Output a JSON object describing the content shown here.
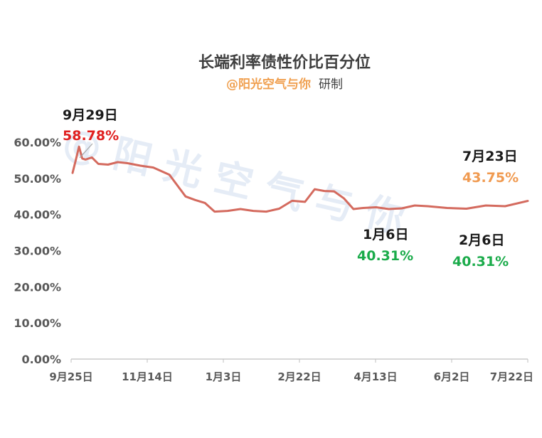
{
  "chart_data": {
    "type": "line",
    "title": "长端利率债性价比百分位",
    "subtitle_brand": "@阳光空气与你",
    "subtitle_rest": "研制",
    "watermark": "@ 阳 光 空 气 与 你",
    "xlabel": "",
    "ylabel": "",
    "ylim": [
      0,
      60
    ],
    "grid": false,
    "y_ticks": [
      "0.00%",
      "10.00%",
      "20.00%",
      "30.00%",
      "40.00%",
      "50.00%",
      "60.00%"
    ],
    "x_ticks": [
      "9月25日",
      "11月14日",
      "1月3日",
      "2月22日",
      "4月13日",
      "6月2日",
      "7月22日"
    ],
    "line_color": "#d46a5e",
    "series": [
      {
        "x": [
          0,
          2,
          4,
          6,
          8,
          12,
          16,
          22,
          28,
          34,
          42,
          50,
          60,
          70,
          76,
          82,
          88,
          96,
          104,
          112,
          120,
          128,
          136,
          144,
          150,
          156,
          162,
          168,
          174,
          180,
          188,
          196,
          204,
          212,
          220,
          232,
          244,
          256,
          268,
          282
        ],
        "values": [
          51.5,
          55,
          58.78,
          55.5,
          55.2,
          55.8,
          54,
          53.8,
          54.5,
          54.2,
          53.5,
          53,
          51,
          45,
          44,
          43.2,
          40.8,
          41,
          41.5,
          41,
          40.8,
          41.6,
          43.8,
          43.5,
          47,
          46.5,
          46.4,
          44.5,
          41.5,
          41.8,
          42,
          41.5,
          41.7,
          42.5,
          42.3,
          41.8,
          41.6,
          42.5,
          42.3,
          43.75
        ]
      }
    ],
    "annotations": [
      {
        "date": "9月29日",
        "value": "58.78%",
        "color": "#e02020"
      },
      {
        "date": "7月23日",
        "value": "43.75%",
        "color": "#f09a50"
      },
      {
        "date": "1月6日",
        "value": "40.31%",
        "color": "#1aab4a"
      },
      {
        "date": "2月6日",
        "value": "40.31%",
        "color": "#1aab4a"
      }
    ]
  }
}
